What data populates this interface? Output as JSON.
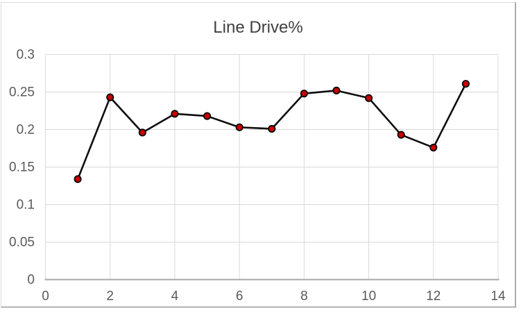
{
  "chart_data": {
    "type": "line",
    "title": "Line Drive%",
    "x": [
      1,
      2,
      3,
      4,
      5,
      6,
      7,
      8,
      9,
      10,
      11,
      12,
      13
    ],
    "values": [
      0.134,
      0.243,
      0.196,
      0.221,
      0.218,
      0.203,
      0.201,
      0.248,
      0.252,
      0.242,
      0.193,
      0.176,
      0.261
    ],
    "series_name": "Line Drive%",
    "xlabel": "",
    "ylabel": "",
    "xlim": [
      0,
      14
    ],
    "ylim": [
      0,
      0.3
    ],
    "x_tick_values": [
      0,
      2,
      4,
      6,
      8,
      10,
      12,
      14
    ],
    "x_tick_labels": [
      "0",
      "2",
      "4",
      "6",
      "8",
      "10",
      "12",
      "14"
    ],
    "y_tick_values": [
      0,
      0.05,
      0.1,
      0.15,
      0.2,
      0.25,
      0.3
    ],
    "y_tick_labels": [
      "0",
      "0.05",
      "0.1",
      "0.15",
      "0.2",
      "0.25",
      "0.3"
    ],
    "grid": true,
    "legend": "none",
    "marker": "circle"
  },
  "style": {
    "line_color": "#0d0d0d",
    "marker_fill": "#c80000",
    "marker_stroke": "#000000",
    "gridline_color": "#d9d9d9",
    "axis_line_color": "#a6a6a6",
    "tick_label_color": "#595959",
    "title_color": "#404040",
    "frame_border_color": "#ababab",
    "background": "#ffffff"
  }
}
